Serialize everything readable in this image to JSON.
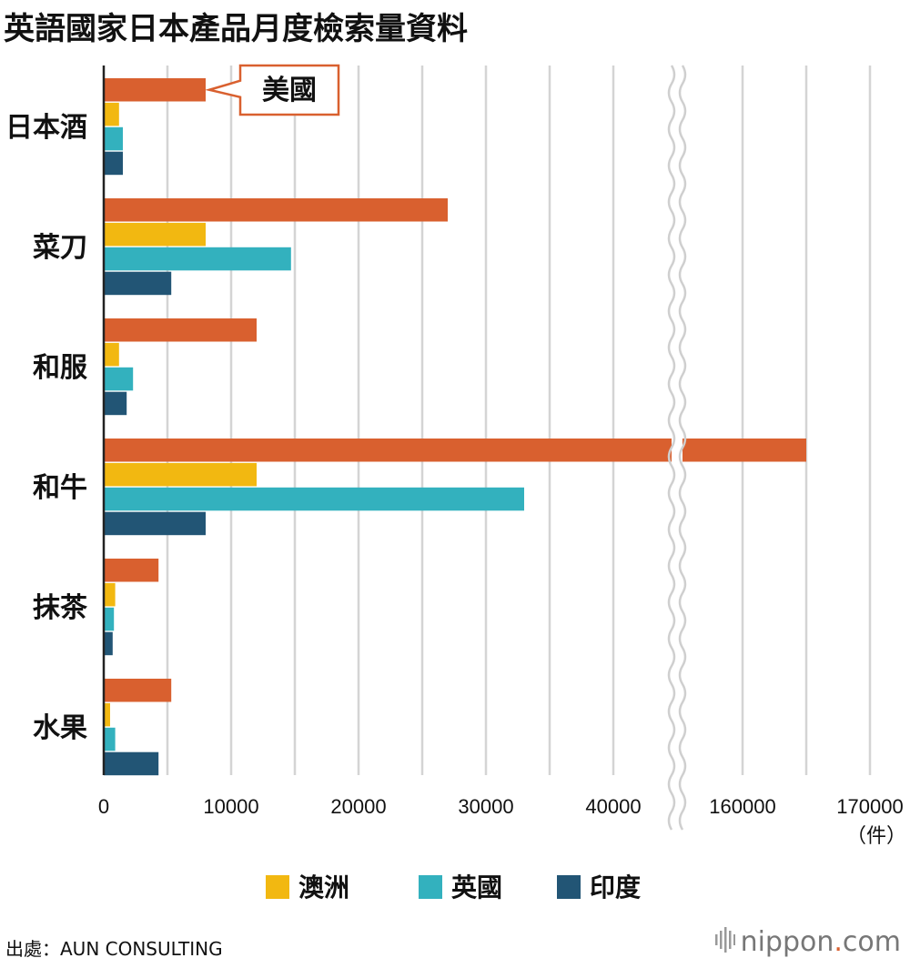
{
  "title": "英語國家日本產品月度檢索量資料",
  "source": "出處：AUN CONSULTING",
  "brand": {
    "name": "nippon",
    "dot": ".",
    "tld": "com"
  },
  "unit_label": "（件）",
  "callout": {
    "label": "美國"
  },
  "colors": {
    "美國": "#d9602f",
    "澳洲": "#f2b811",
    "英國": "#33b1be",
    "印度": "#225575",
    "grid": "#d4d4d4",
    "axis": "#222222"
  },
  "chart_data": {
    "type": "bar",
    "orientation": "horizontal",
    "title": "英語國家日本產品月度檢索量資料",
    "categories": [
      "日本酒",
      "菜刀",
      "和服",
      "和牛",
      "抹茶",
      "水果"
    ],
    "series": [
      {
        "name": "美國",
        "values": [
          8000,
          27000,
          12000,
          165000,
          4300,
          5300
        ]
      },
      {
        "name": "澳洲",
        "values": [
          1200,
          8000,
          1200,
          12000,
          900,
          500
        ]
      },
      {
        "name": "英國",
        "values": [
          1500,
          14700,
          2300,
          33000,
          800,
          900
        ]
      },
      {
        "name": "印度",
        "values": [
          1500,
          5300,
          1800,
          8000,
          700,
          4300
        ]
      }
    ],
    "x_ticks": [
      "0",
      "10000",
      "20000",
      "30000",
      "40000",
      "160000",
      "170000"
    ],
    "xlim": [
      0,
      170000
    ],
    "axis_break": [
      45000,
      155000
    ],
    "xlabel": "",
    "unit": "（件）",
    "legend": [
      "澳洲",
      "英國",
      "印度"
    ],
    "legend_position": "bottom",
    "grid": true
  }
}
